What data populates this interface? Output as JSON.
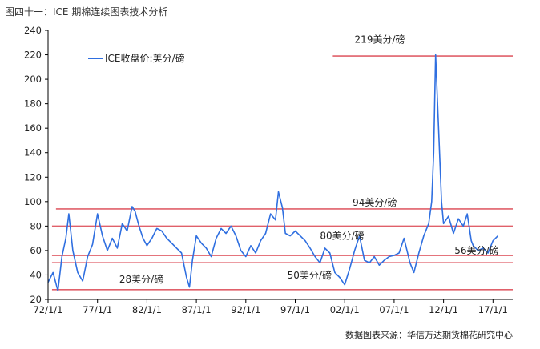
{
  "header": {
    "title": "图四十一：ICE 期棉连续图表技术分析"
  },
  "footer": {
    "source": "数据图表来源：华信万达期货棉花研究中心"
  },
  "colors": {
    "series": "#2f6fe0",
    "reference": "#e0606a",
    "axis": "#000000"
  },
  "chart_data": {
    "type": "line",
    "title": "",
    "xlabel": "",
    "ylabel": "",
    "ylim": [
      20,
      240
    ],
    "xlim": [
      1972,
      2019
    ],
    "y_ticks": [
      "20",
      "40",
      "60",
      "80",
      "100",
      "120",
      "140",
      "160",
      "180",
      "200",
      "220",
      "240"
    ],
    "x_ticks": [
      {
        "label": "72/1/1",
        "x": 1972
      },
      {
        "label": "77/1/1",
        "x": 1977
      },
      {
        "label": "82/1/1",
        "x": 1982
      },
      {
        "label": "87/1/1",
        "x": 1987
      },
      {
        "label": "92/1/1",
        "x": 1992
      },
      {
        "label": "97/1/1",
        "x": 1997
      },
      {
        "label": "02/1/1",
        "x": 2002
      },
      {
        "label": "07/1/1",
        "x": 2007
      },
      {
        "label": "12/1/1",
        "x": 2012
      },
      {
        "label": "17/1/1",
        "x": 2017
      }
    ],
    "grid": false,
    "legend": {
      "position": "top-left",
      "label": "ICE收盘价:美分/磅"
    },
    "series": [
      {
        "name": "ICE收盘价:美分/磅",
        "x": [
          1972.0,
          1972.5,
          1973.0,
          1973.4,
          1973.8,
          1974.1,
          1974.5,
          1975.0,
          1975.5,
          1976.0,
          1976.5,
          1977.0,
          1977.5,
          1978.0,
          1978.5,
          1979.0,
          1979.5,
          1980.0,
          1980.5,
          1980.8,
          1981.2,
          1981.6,
          1982.0,
          1982.5,
          1983.0,
          1983.5,
          1984.0,
          1984.5,
          1985.0,
          1985.5,
          1986.0,
          1986.3,
          1986.6,
          1987.0,
          1987.5,
          1988.0,
          1988.5,
          1989.0,
          1989.5,
          1990.0,
          1990.5,
          1991.0,
          1991.5,
          1992.0,
          1992.5,
          1993.0,
          1993.5,
          1994.0,
          1994.5,
          1995.0,
          1995.3,
          1995.7,
          1996.0,
          1996.5,
          1997.0,
          1997.5,
          1998.0,
          1998.5,
          1999.0,
          1999.5,
          2000.0,
          2000.5,
          2001.0,
          2001.5,
          2002.0,
          2002.5,
          2003.0,
          2003.5,
          2004.0,
          2004.5,
          2005.0,
          2005.5,
          2006.0,
          2006.5,
          2007.0,
          2007.5,
          2008.0,
          2008.3,
          2008.6,
          2009.0,
          2009.5,
          2010.0,
          2010.5,
          2010.8,
          2011.0,
          2011.2,
          2011.5,
          2011.8,
          2012.0,
          2012.5,
          2013.0,
          2013.5,
          2014.0,
          2014.4,
          2014.8,
          2015.0,
          2015.5,
          2016.0,
          2016.5,
          2017.0,
          2017.5
        ],
        "values": [
          34,
          42,
          27,
          55,
          70,
          90,
          60,
          42,
          35,
          55,
          65,
          90,
          72,
          60,
          70,
          62,
          82,
          76,
          96,
          92,
          80,
          70,
          64,
          70,
          78,
          76,
          70,
          66,
          62,
          58,
          38,
          30,
          52,
          72,
          66,
          62,
          55,
          70,
          78,
          74,
          80,
          72,
          60,
          55,
          64,
          58,
          68,
          74,
          90,
          85,
          108,
          95,
          74,
          72,
          76,
          72,
          68,
          62,
          55,
          50,
          62,
          58,
          42,
          38,
          32,
          45,
          60,
          72,
          52,
          50,
          55,
          48,
          52,
          55,
          56,
          58,
          70,
          60,
          50,
          42,
          58,
          72,
          82,
          100,
          140,
          220,
          160,
          100,
          82,
          88,
          74,
          86,
          80,
          90,
          68,
          64,
          60,
          62,
          58,
          68,
          72
        ]
      }
    ],
    "reference_lines": [
      {
        "value": 219,
        "label": "219美分/磅"
      },
      {
        "value": 94,
        "label": "94美分/磅"
      },
      {
        "value": 80,
        "label": "80美分/磅"
      },
      {
        "value": 56,
        "label": "56美分/磅"
      },
      {
        "value": 50,
        "label": "50美分/磅"
      },
      {
        "value": 28,
        "label": "28美分/磅"
      }
    ]
  }
}
